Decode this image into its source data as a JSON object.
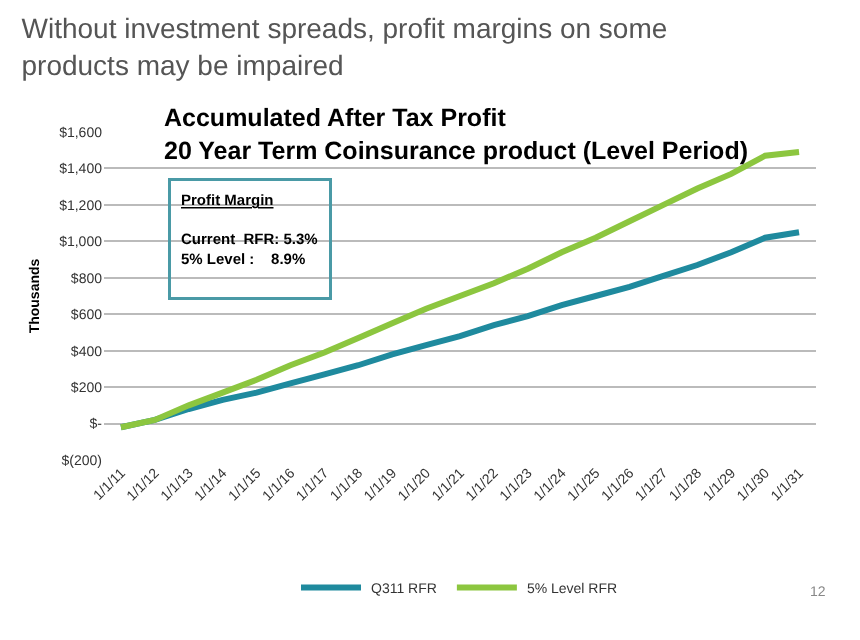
{
  "chart_data": {
    "type": "line",
    "title": "Without investment spreads, profit margins on some products may be impaired",
    "subtitle": "Accumulated After Tax Profit\n20 Year Term Coinsurance product (Level Period)",
    "ylabel": "Thousands",
    "categories": [
      "1/1/11",
      "1/1/12",
      "1/1/13",
      "1/1/14",
      "1/1/15",
      "1/1/16",
      "1/1/17",
      "1/1/18",
      "1/1/19",
      "1/1/20",
      "1/1/21",
      "1/1/22",
      "1/1/23",
      "1/1/24",
      "1/1/25",
      "1/1/26",
      "1/1/27",
      "1/1/28",
      "1/1/29",
      "1/1/30",
      "1/1/31"
    ],
    "series": [
      {
        "name": "Q311 RFR",
        "color": "#1f8a9e",
        "values": [
          -20,
          20,
          80,
          130,
          170,
          220,
          270,
          320,
          380,
          430,
          480,
          540,
          590,
          650,
          700,
          750,
          810,
          870,
          940,
          1020,
          1050
        ]
      },
      {
        "name": "5% Level RFR",
        "color": "#8cc63f",
        "values": [
          -20,
          20,
          100,
          170,
          240,
          320,
          390,
          470,
          550,
          630,
          700,
          770,
          850,
          940,
          1020,
          1110,
          1200,
          1290,
          1370,
          1470,
          1490
        ]
      }
    ],
    "ylim": [
      -200,
      1600
    ],
    "yticks": [
      {
        "value": -200,
        "label": "$(200)"
      },
      {
        "value": 0,
        "label": "$-"
      },
      {
        "value": 200,
        "label": "$200"
      },
      {
        "value": 400,
        "label": "$400"
      },
      {
        "value": 600,
        "label": "$600"
      },
      {
        "value": 800,
        "label": "$800"
      },
      {
        "value": 1000,
        "label": "$1,000"
      },
      {
        "value": 1200,
        "label": "$1,200"
      },
      {
        "value": 1400,
        "label": "$1,400"
      },
      {
        "value": 1600,
        "label": "$1,600"
      }
    ],
    "grid": "y",
    "legend": "bottom",
    "marker": "none",
    "line_style": "solid",
    "annotations": [
      "Profit Margin",
      "Current  RFR: 5.3%",
      "5% Level :    8.9%",
      "12"
    ]
  }
}
